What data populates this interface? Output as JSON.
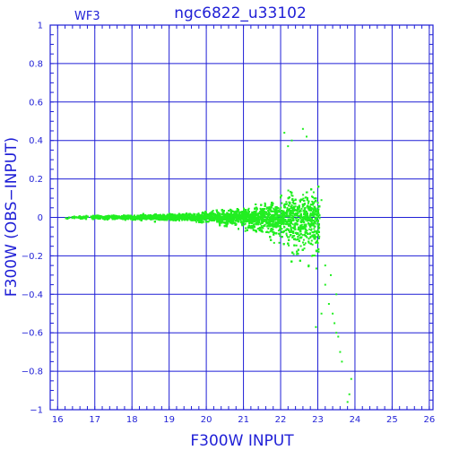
{
  "chart_data": {
    "type": "scatter",
    "title": "ngc6822_u33102",
    "tag": "WF3",
    "xlabel": "F300W INPUT",
    "ylabel": "F300W (OBS−INPUT)",
    "xlim": [
      15.8,
      26.1
    ],
    "ylim": [
      -1,
      1
    ],
    "xticks": [
      16,
      17,
      18,
      19,
      20,
      21,
      22,
      23,
      24,
      25,
      26
    ],
    "yticks": [
      1,
      0.8,
      0.6,
      0.4,
      0.2,
      0,
      -0.2,
      -0.4,
      -0.6,
      -0.8,
      -1
    ],
    "ytick_labels": [
      "1",
      "0.8",
      "0.6",
      "0.4",
      "0.2",
      "0",
      "−0.2",
      "−0.4",
      "−0.6",
      "−0.8",
      "−1"
    ],
    "grid": true,
    "colors": {
      "axes": "#1f1fd6",
      "points": "#22ee22"
    },
    "series": [
      {
        "point_count": 9000,
        "envelope": [
          {
            "x": 16.1,
            "scatter": 0.007
          },
          {
            "x": 17.0,
            "scatter": 0.008
          },
          {
            "x": 18.0,
            "scatter": 0.01
          },
          {
            "x": 19.0,
            "scatter": 0.014
          },
          {
            "x": 20.0,
            "scatter": 0.022
          },
          {
            "x": 21.0,
            "scatter": 0.04
          },
          {
            "x": 21.5,
            "scatter": 0.06
          },
          {
            "x": 22.0,
            "scatter": 0.08
          },
          {
            "x": 22.5,
            "scatter": 0.1
          },
          {
            "x": 23.0,
            "scatter": 0.12
          }
        ],
        "outliers": [
          {
            "x": 23.2,
            "y": -0.35
          },
          {
            "x": 23.3,
            "y": -0.45
          },
          {
            "x": 23.4,
            "y": -0.5
          },
          {
            "x": 23.45,
            "y": -0.55
          },
          {
            "x": 23.5,
            "y": -0.6
          },
          {
            "x": 23.55,
            "y": -0.62
          },
          {
            "x": 23.6,
            "y": -0.7
          },
          {
            "x": 23.65,
            "y": -0.75
          },
          {
            "x": 23.5,
            "y": -0.4
          },
          {
            "x": 23.1,
            "y": -0.5
          },
          {
            "x": 22.95,
            "y": -0.57
          },
          {
            "x": 23.9,
            "y": -0.84
          },
          {
            "x": 23.85,
            "y": -0.92
          },
          {
            "x": 23.8,
            "y": -0.96
          },
          {
            "x": 23.35,
            "y": -0.3
          },
          {
            "x": 22.1,
            "y": 0.44
          },
          {
            "x": 22.6,
            "y": 0.46
          },
          {
            "x": 22.3,
            "y": 0.4
          },
          {
            "x": 22.2,
            "y": 0.37
          },
          {
            "x": 22.7,
            "y": 0.42
          },
          {
            "x": 23.1,
            "y": 0.09
          },
          {
            "x": 23.2,
            "y": -0.25
          }
        ]
      }
    ]
  }
}
